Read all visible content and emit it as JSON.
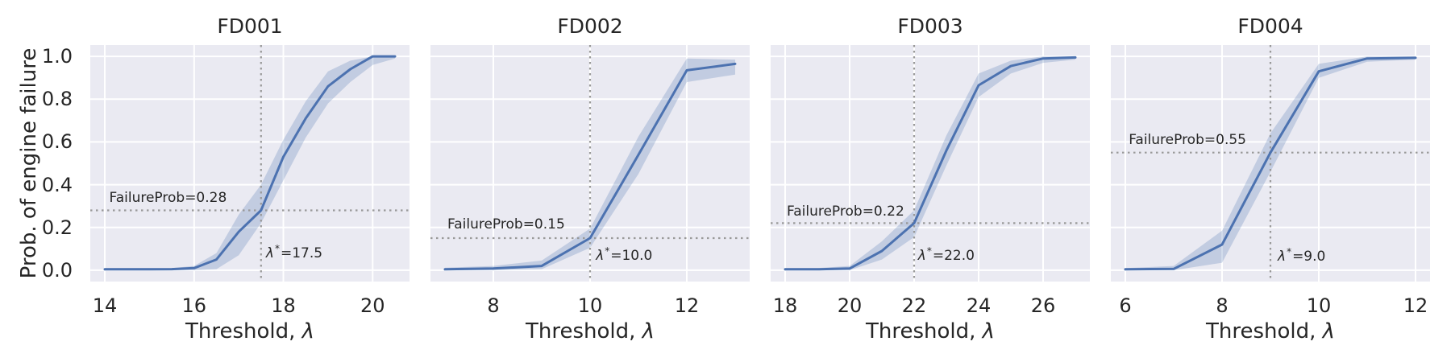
{
  "figure": {
    "ylabel": "Prob. of engine failure",
    "xlabel_prefix": "Threshold, ",
    "xlabel_symbol": "λ",
    "colors": {
      "plot_bg": "#eaeaf2",
      "grid": "#ffffff",
      "line": "#4c72b0",
      "band": "#4c72b0",
      "band_opacity": 0.25,
      "crosshair": "#999999",
      "text": "#262626"
    }
  },
  "chart_data": {
    "type": "line",
    "ylabel": "Prob. of engine failure",
    "xlabel": "Threshold, λ",
    "ylim": [
      -0.053,
      1.053
    ],
    "yticks": [
      0.0,
      0.2,
      0.4,
      0.6,
      0.8,
      1.0
    ],
    "yticklabels": [
      "0.0",
      "0.2",
      "0.4",
      "0.6",
      "0.8",
      "1.0"
    ],
    "legend": "none",
    "grid": true,
    "panels": [
      {
        "title": "FD001",
        "show_ytick_labels": true,
        "xlim": [
          13.675,
          20.825
        ],
        "xticks": [
          14,
          16,
          18,
          20
        ],
        "xticklabels": [
          "14",
          "16",
          "18",
          "20"
        ],
        "series": {
          "x": [
            14,
            14.5,
            15,
            15.5,
            16,
            16.5,
            17,
            17.5,
            18,
            18.5,
            19,
            19.5,
            20,
            20.5
          ],
          "y": [
            0.004,
            0.004,
            0.004,
            0.005,
            0.01,
            0.05,
            0.18,
            0.28,
            0.53,
            0.71,
            0.86,
            0.94,
            1.0,
            1.0
          ],
          "band_lo": [
            0.0,
            0.0,
            0.0,
            0.0,
            0.0,
            0.005,
            0.07,
            0.22,
            0.42,
            0.62,
            0.78,
            0.88,
            0.96,
            0.99
          ],
          "band_hi": [
            0.01,
            0.01,
            0.01,
            0.01,
            0.02,
            0.08,
            0.26,
            0.4,
            0.61,
            0.79,
            0.93,
            0.98,
            1.0,
            1.0
          ]
        },
        "crosshair": {
          "x": 17.5,
          "y": 0.28
        },
        "annotations": {
          "failure_prob": {
            "text": "FailureProb=0.28",
            "x": 14.1,
            "y": 0.305
          },
          "lambda_star": {
            "symbol": "λ",
            "sup": "*",
            "rest": "=17.5",
            "x": 17.61,
            "y": 0.045
          }
        }
      },
      {
        "title": "FD002",
        "show_ytick_labels": false,
        "xlim": [
          6.7,
          13.3
        ],
        "xticks": [
          8,
          10,
          12
        ],
        "xticklabels": [
          "8",
          "10",
          "12"
        ],
        "series": {
          "x": [
            7,
            8,
            9,
            10,
            11,
            12,
            13
          ],
          "y": [
            0.004,
            0.008,
            0.02,
            0.15,
            0.54,
            0.935,
            0.965
          ],
          "band_lo": [
            0.0,
            0.0,
            0.005,
            0.105,
            0.45,
            0.88,
            0.915
          ],
          "band_hi": [
            0.012,
            0.02,
            0.045,
            0.195,
            0.625,
            0.99,
            0.985
          ]
        },
        "crosshair": {
          "x": 10.0,
          "y": 0.15
        },
        "annotations": {
          "failure_prob": {
            "text": "FailureProb=0.15",
            "x": 7.05,
            "y": 0.18
          },
          "lambda_star": {
            "symbol": "λ",
            "sup": "*",
            "rest": "=10.0",
            "x": 10.12,
            "y": 0.035
          }
        }
      },
      {
        "title": "FD003",
        "show_ytick_labels": false,
        "xlim": [
          17.55,
          27.45
        ],
        "xticks": [
          18,
          20,
          22,
          24,
          26
        ],
        "xticklabels": [
          "18",
          "20",
          "22",
          "24",
          "26"
        ],
        "series": {
          "x": [
            18,
            19,
            20,
            21,
            22,
            23,
            24,
            25,
            26,
            27
          ],
          "y": [
            0.004,
            0.004,
            0.008,
            0.09,
            0.22,
            0.56,
            0.865,
            0.955,
            0.99,
            0.995
          ],
          "band_lo": [
            0.0,
            0.0,
            0.0,
            0.05,
            0.155,
            0.49,
            0.81,
            0.92,
            0.97,
            0.985
          ],
          "band_hi": [
            0.01,
            0.01,
            0.02,
            0.135,
            0.28,
            0.63,
            0.92,
            0.98,
            1.0,
            1.0
          ]
        },
        "crosshair": {
          "x": 22.0,
          "y": 0.22
        },
        "annotations": {
          "failure_prob": {
            "text": "FailureProb=0.22",
            "x": 18.05,
            "y": 0.24
          },
          "lambda_star": {
            "symbol": "λ",
            "sup": "*",
            "rest": "=22.0",
            "x": 22.12,
            "y": 0.035
          }
        }
      },
      {
        "title": "FD004",
        "show_ytick_labels": false,
        "xlim": [
          5.7,
          12.3
        ],
        "xticks": [
          6,
          8,
          10,
          12
        ],
        "xticklabels": [
          "6",
          "8",
          "10",
          "12"
        ],
        "series": {
          "x": [
            6,
            7,
            8,
            9,
            10,
            11,
            12
          ],
          "y": [
            0.004,
            0.006,
            0.12,
            0.55,
            0.93,
            0.99,
            0.993
          ],
          "band_lo": [
            0.0,
            0.0,
            0.035,
            0.46,
            0.9,
            0.975,
            0.985
          ],
          "band_hi": [
            0.01,
            0.02,
            0.185,
            0.64,
            0.965,
            1.0,
            1.0
          ]
        },
        "crosshair": {
          "x": 9.0,
          "y": 0.55
        },
        "annotations": {
          "failure_prob": {
            "text": "FailureProb=0.55",
            "x": 6.07,
            "y": 0.575
          },
          "lambda_star": {
            "symbol": "λ",
            "sup": "*",
            "rest": "=9.0",
            "x": 9.15,
            "y": 0.03
          }
        }
      }
    ]
  }
}
